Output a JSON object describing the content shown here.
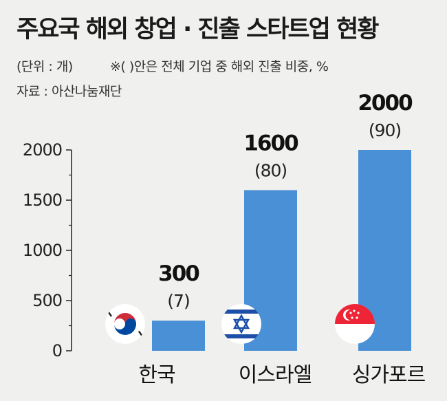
{
  "title": "주요국 해외 창업 · 진출 스타트업 현황",
  "unit_note": "(단위 : 개)",
  "share_note": "※(    )안은 전체 기업 중 해외 진출 비중, %",
  "source": "자료 : 아산나눔재단",
  "colors": {
    "bar": "#4a90d6",
    "background": "#f0f0ee",
    "axis": "#222222"
  },
  "chart_data": {
    "type": "bar",
    "categories": [
      "한국",
      "이스라엘",
      "싱가포르"
    ],
    "values": [
      300,
      1600,
      2000
    ],
    "shares": [
      "(7)",
      "(80)",
      "(90)"
    ],
    "value_labels": [
      "300",
      "1600",
      "2000"
    ],
    "yticks": [
      "0",
      "500",
      "1000",
      "1500",
      "2000"
    ],
    "ylim": [
      0,
      2000
    ],
    "flags": [
      "south-korea-flag-icon",
      "israel-flag-icon",
      "singapore-flag-icon"
    ]
  }
}
